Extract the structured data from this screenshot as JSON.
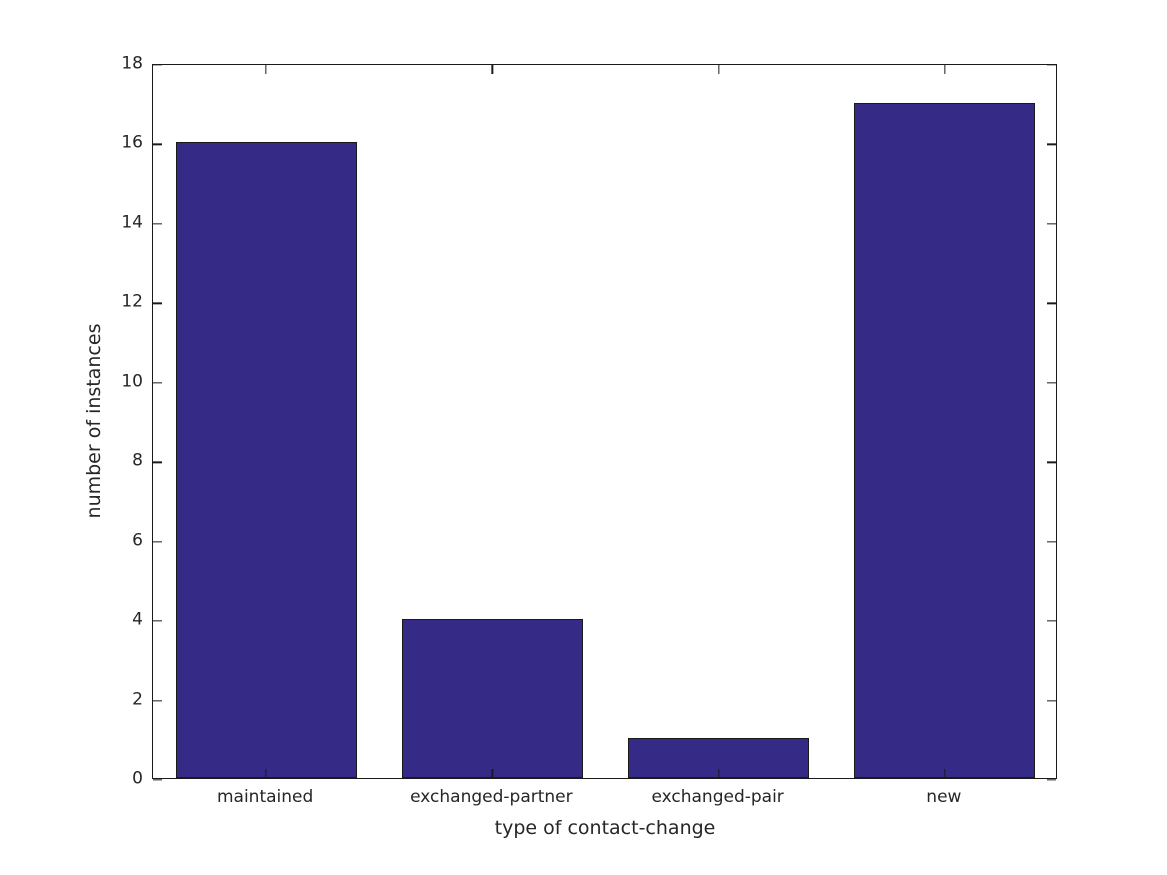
{
  "figure": {
    "background": "#ffffff",
    "axis_color": "#1a1a1a",
    "text_color": "#262626"
  },
  "chart_data": {
    "type": "bar",
    "title": "",
    "categories": [
      "maintained",
      "exchanged-partner",
      "exchanged-pair",
      "new"
    ],
    "values": [
      16,
      4,
      1,
      17
    ],
    "xlabel": "type of contact-change",
    "ylabel": "number of instances",
    "ylim": [
      0,
      18
    ],
    "yticks": [
      0,
      2,
      4,
      6,
      8,
      10,
      12,
      14,
      16,
      18
    ],
    "bar_color": "#352a85",
    "bar_edge_color": "#1a1a1a",
    "bar_width_fraction": 0.8,
    "grid": false,
    "legend": false,
    "box": true,
    "tick_direction": "in"
  }
}
